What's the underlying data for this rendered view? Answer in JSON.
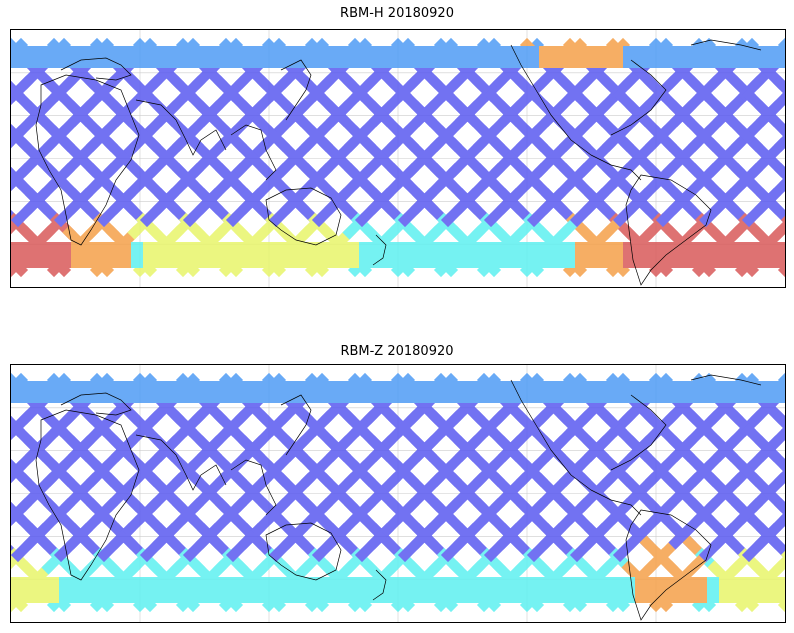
{
  "panels": [
    {
      "title": "RBM-H 20180920",
      "id": "rbm-h"
    },
    {
      "title": "RBM-Z 20180920",
      "id": "rbm-z"
    }
  ],
  "colors": {
    "low": "#5a5af0",
    "mid_low": "#4f9cf5",
    "mid": "#5ef0f0",
    "mid_high": "#e8f56a",
    "high": "#f5a04a",
    "very_high": "#d95a5a",
    "grid": "#cccccc",
    "coast": "#000000"
  }
}
